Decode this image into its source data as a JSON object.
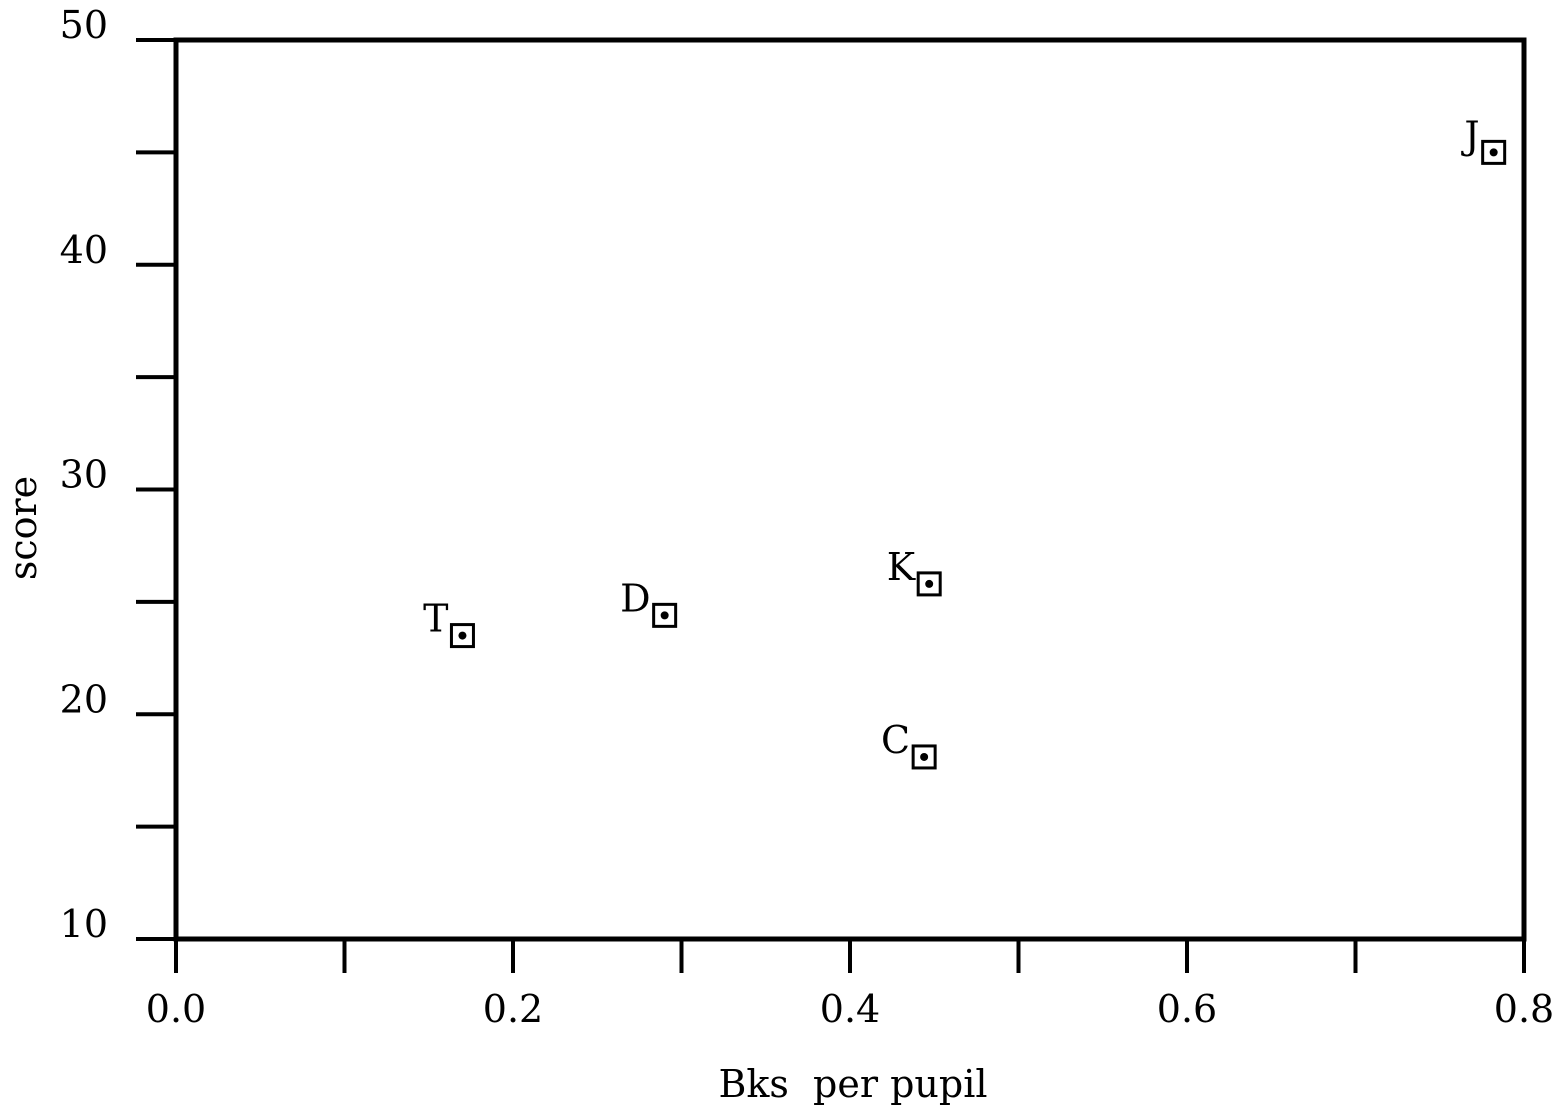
{
  "chart_data": {
    "type": "scatter",
    "title": "",
    "xlabel": "Bks  per pupil",
    "ylabel": "score",
    "xlim": [
      0.0,
      0.8
    ],
    "ylim": [
      10,
      50
    ],
    "x_ticks": [
      0.0,
      0.1,
      0.2,
      0.3,
      0.4,
      0.5,
      0.6,
      0.7,
      0.8
    ],
    "x_tick_labels": [
      "0.0",
      "",
      "0.2",
      "",
      "0.4",
      "",
      "0.6",
      "",
      "0.8"
    ],
    "y_ticks": [
      10,
      15,
      20,
      25,
      30,
      35,
      40,
      45,
      50
    ],
    "y_tick_labels": [
      "10",
      "",
      "20",
      "",
      "30",
      "",
      "40",
      "",
      "50"
    ],
    "grid": false,
    "points": [
      {
        "label": "T",
        "x": 0.17,
        "y": 23.5
      },
      {
        "label": "D",
        "x": 0.29,
        "y": 24.4
      },
      {
        "label": "K",
        "x": 0.447,
        "y": 25.8
      },
      {
        "label": "C",
        "x": 0.444,
        "y": 18.1
      },
      {
        "label": "J",
        "x": 0.782,
        "y": 45.0
      }
    ]
  }
}
